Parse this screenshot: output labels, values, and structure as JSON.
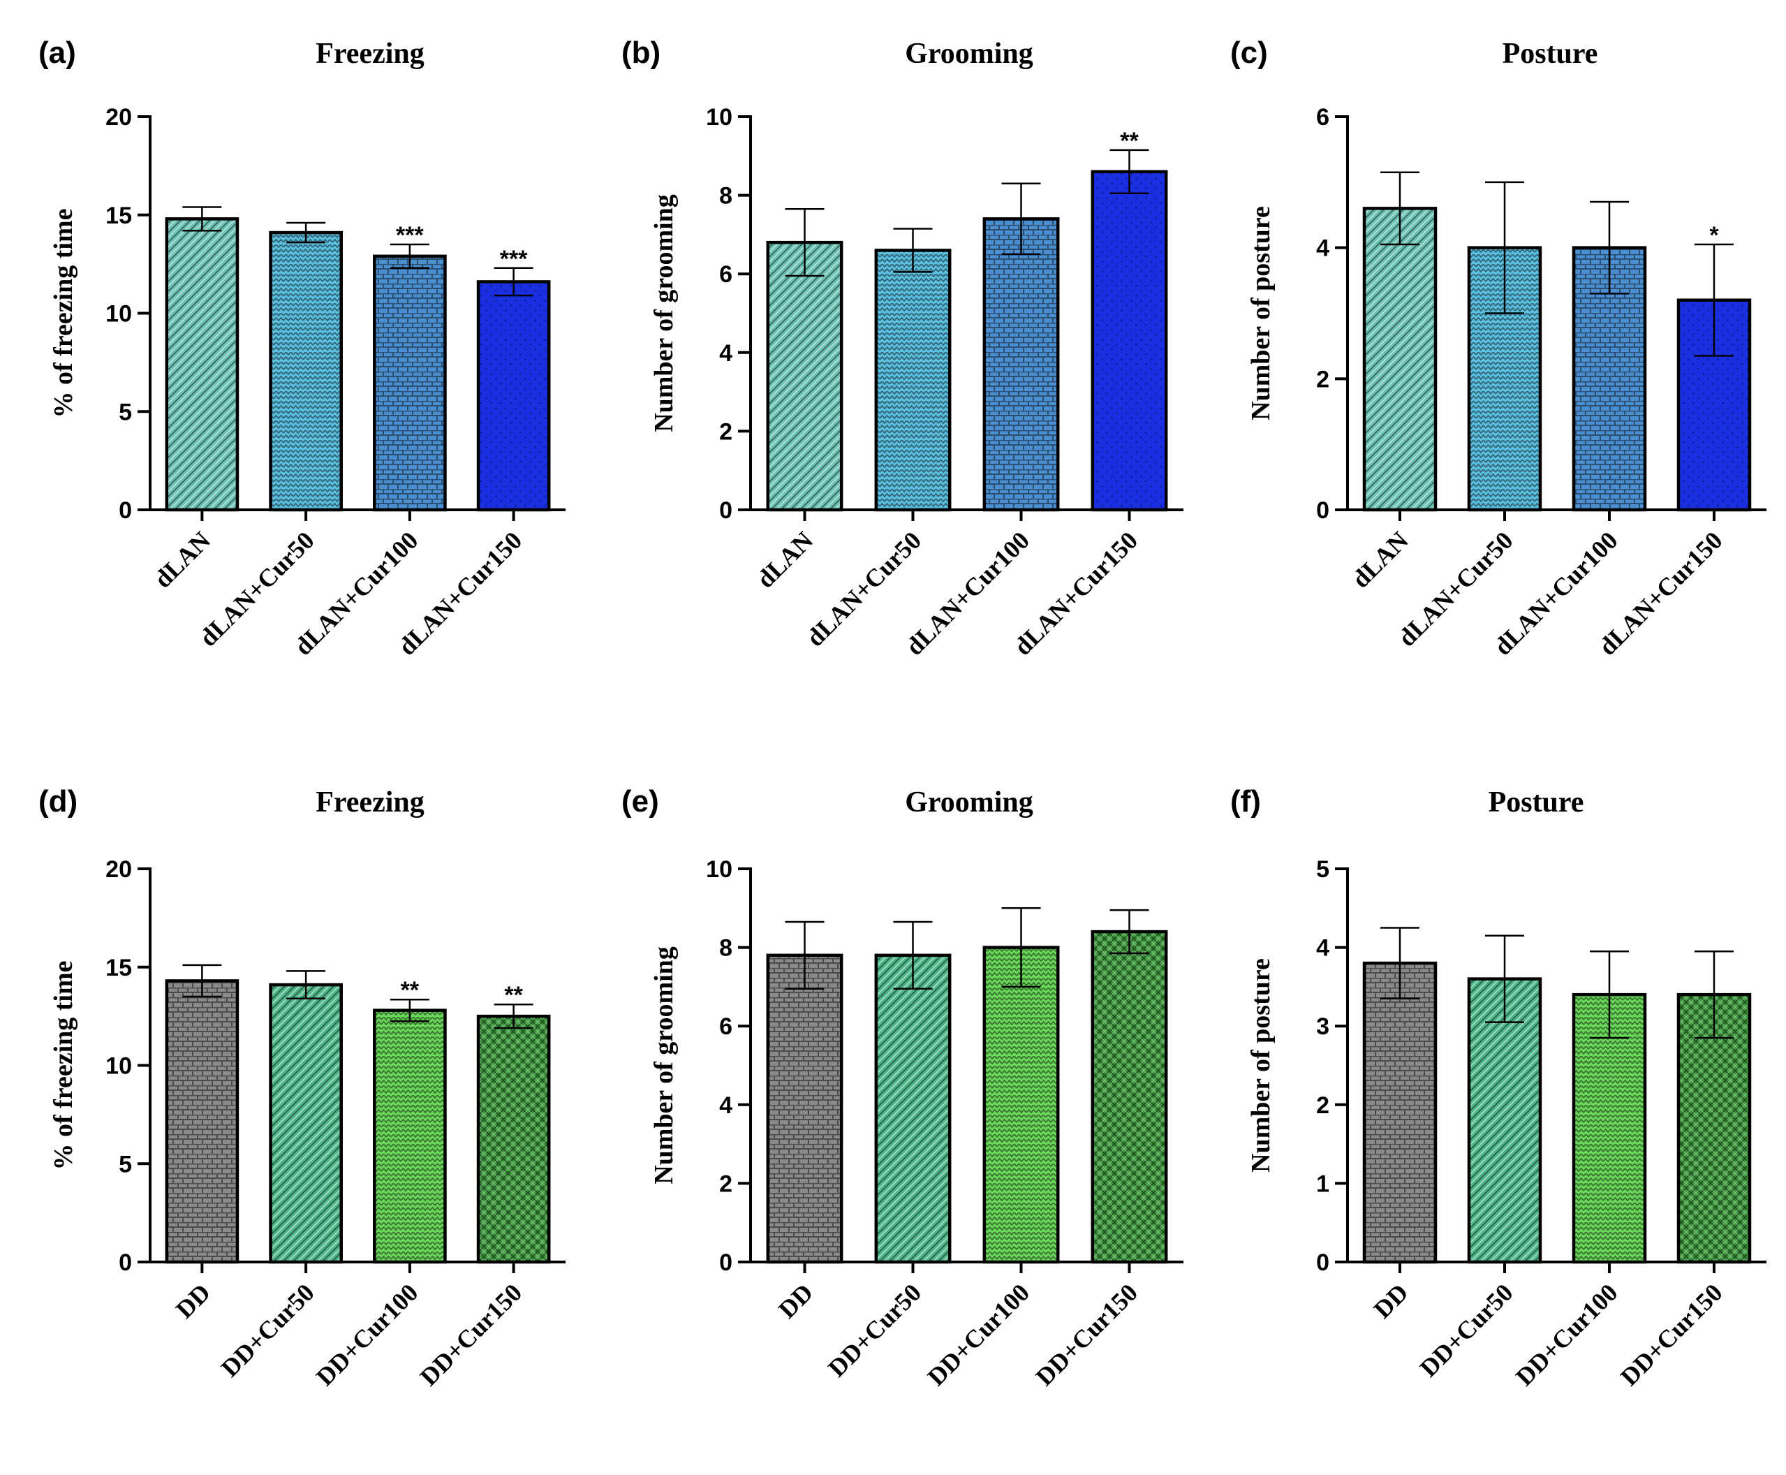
{
  "chart_data": [
    {
      "panel": "(a)",
      "title": "Freezing",
      "type": "bar",
      "ylabel": "% of freezing time",
      "ylim": [
        0,
        20
      ],
      "yticks": [
        0,
        5,
        10,
        15,
        20
      ],
      "categories": [
        "dLAN",
        "dLAN+Cur50",
        "dLAN+Cur100",
        "dLAN+Cur150"
      ],
      "values": [
        14.8,
        14.1,
        12.9,
        11.6
      ],
      "errors": [
        0.6,
        0.5,
        0.6,
        0.7
      ],
      "significance": [
        "",
        "",
        "***",
        "***"
      ],
      "colors": [
        "#6dc4b5",
        "#5cc0e0",
        "#4c8fd0",
        "#1a30e0"
      ],
      "patterns": [
        "diag",
        "zigzag",
        "brick",
        "dots"
      ]
    },
    {
      "panel": "(b)",
      "title": "Grooming",
      "type": "bar",
      "ylabel": "Number of grooming",
      "ylim": [
        0,
        10
      ],
      "yticks": [
        0,
        2,
        4,
        6,
        8,
        10
      ],
      "categories": [
        "dLAN",
        "dLAN+Cur50",
        "dLAN+Cur100",
        "dLAN+Cur150"
      ],
      "values": [
        6.8,
        6.6,
        7.4,
        8.6
      ],
      "errors": [
        0.85,
        0.55,
        0.9,
        0.55
      ],
      "significance": [
        "",
        "",
        "",
        "**"
      ],
      "colors": [
        "#6dc4b5",
        "#5cc0e0",
        "#4c8fd0",
        "#1a30e0"
      ],
      "patterns": [
        "diag",
        "zigzag",
        "brick",
        "dots"
      ]
    },
    {
      "panel": "(c)",
      "title": "Posture",
      "type": "bar",
      "ylabel": "Number of posture",
      "ylim": [
        0,
        6
      ],
      "yticks": [
        0,
        2,
        4,
        6
      ],
      "categories": [
        "dLAN",
        "dLAN+Cur50",
        "dLAN+Cur100",
        "dLAN+Cur150"
      ],
      "values": [
        4.6,
        4.0,
        4.0,
        3.2
      ],
      "errors": [
        0.55,
        1.0,
        0.7,
        0.85
      ],
      "significance": [
        "",
        "",
        "",
        "*"
      ],
      "colors": [
        "#6dc4b5",
        "#5cc0e0",
        "#4c8fd0",
        "#1a30e0"
      ],
      "patterns": [
        "diag",
        "zigzag",
        "brick",
        "dots"
      ]
    },
    {
      "panel": "(d)",
      "title": "Freezing",
      "type": "bar",
      "ylabel": "% of freezing time",
      "ylim": [
        0,
        20
      ],
      "yticks": [
        0,
        5,
        10,
        15,
        20
      ],
      "categories": [
        "DD",
        "DD+Cur50",
        "DD+Cur100",
        "DD+Cur150"
      ],
      "values": [
        14.3,
        14.1,
        12.8,
        12.5
      ],
      "errors": [
        0.8,
        0.7,
        0.55,
        0.6
      ],
      "significance": [
        "",
        "",
        "**",
        "**"
      ],
      "colors": [
        "#8a8a8a",
        "#4fb88a",
        "#6ad85a",
        "#3c9a3c"
      ],
      "patterns": [
        "brick",
        "diag",
        "zigzag",
        "cross"
      ]
    },
    {
      "panel": "(e)",
      "title": "Grooming",
      "type": "bar",
      "ylabel": "Number of grooming",
      "ylim": [
        0,
        10
      ],
      "yticks": [
        0,
        2,
        4,
        6,
        8,
        10
      ],
      "categories": [
        "DD",
        "DD+Cur50",
        "DD+Cur100",
        "DD+Cur150"
      ],
      "values": [
        7.8,
        7.8,
        8.0,
        8.4
      ],
      "errors": [
        0.85,
        0.85,
        1.0,
        0.55
      ],
      "significance": [
        "",
        "",
        "",
        ""
      ],
      "colors": [
        "#8a8a8a",
        "#4fb88a",
        "#6ad85a",
        "#3c9a3c"
      ],
      "patterns": [
        "brick",
        "diag",
        "zigzag",
        "cross"
      ]
    },
    {
      "panel": "(f)",
      "title": "Posture",
      "type": "bar",
      "ylabel": "Number of posture",
      "ylim": [
        0,
        5
      ],
      "yticks": [
        0,
        1,
        2,
        3,
        4,
        5
      ],
      "categories": [
        "DD",
        "DD+Cur50",
        "DD+Cur100",
        "DD+Cur150"
      ],
      "values": [
        3.8,
        3.6,
        3.4,
        3.4
      ],
      "errors": [
        0.45,
        0.55,
        0.55,
        0.55
      ],
      "significance": [
        "",
        "",
        "",
        ""
      ],
      "colors": [
        "#8a8a8a",
        "#4fb88a",
        "#6ad85a",
        "#3c9a3c"
      ],
      "patterns": [
        "brick",
        "diag",
        "zigzag",
        "cross"
      ]
    }
  ]
}
